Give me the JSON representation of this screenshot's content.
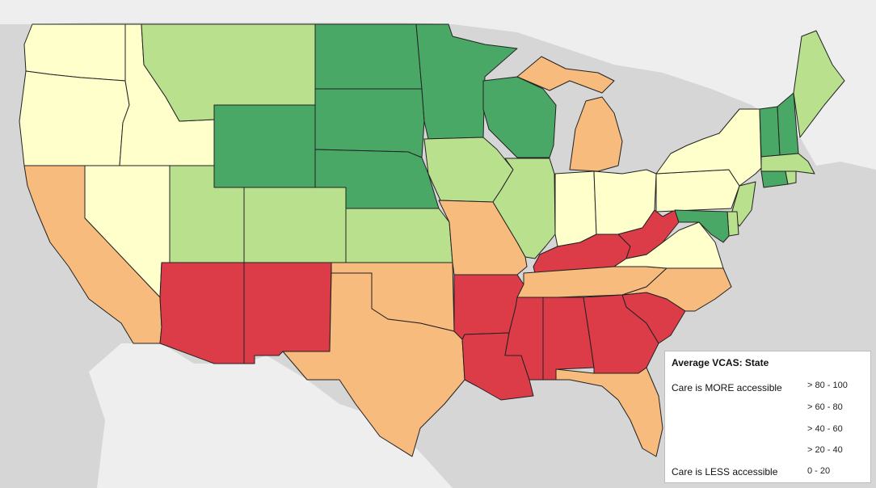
{
  "colors": {
    "water": "#d6d6d6",
    "land": "#eeeeee",
    "bin_80_100": "#4aa867",
    "bin_60_80": "#b9e08d",
    "bin_40_60": "#ffffcc",
    "bin_20_40": "#f8bb7e",
    "bin_0_20": "#dc3c48"
  },
  "legend": {
    "title": "Average VCAS: State",
    "more": "Care is MORE accessible",
    "less": "Care is LESS accessible",
    "bins": [
      {
        "label": "> 80 - 100",
        "color": "#4aa867"
      },
      {
        "label": "> 60 - 80",
        "color": "#b9e08d"
      },
      {
        "label": "> 40 - 60",
        "color": "#ffffcc"
      },
      {
        "label": "> 20 - 40",
        "color": "#f8bb7e"
      },
      {
        "label": "0 - 20",
        "color": "#dc3c48"
      }
    ]
  },
  "states": {
    "WA": "> 40 - 60",
    "OR": "> 40 - 60",
    "ID": "> 40 - 60",
    "NV": "> 40 - 60",
    "CA": "> 20 - 40",
    "MT": "> 60 - 80",
    "WY": "> 80 - 100",
    "UT": "> 60 - 80",
    "CO": "> 60 - 80",
    "AZ": "0 - 20",
    "NM": "0 - 20",
    "ND": "> 80 - 100",
    "SD": "> 80 - 100",
    "NE": "> 80 - 100",
    "KS": "> 60 - 80",
    "OK": "> 20 - 40",
    "TX": "> 20 - 40",
    "MN": "> 80 - 100",
    "IA": "> 60 - 80",
    "MO": "> 20 - 40",
    "AR": "0 - 20",
    "LA": "0 - 20",
    "WI": "> 80 - 100",
    "IL": "> 60 - 80",
    "MI": "> 20 - 40",
    "IN": "> 40 - 60",
    "OH": "> 40 - 60",
    "KY": "0 - 20",
    "TN": "> 20 - 40",
    "MS": "0 - 20",
    "AL": "0 - 20",
    "GA": "0 - 20",
    "FL": "> 20 - 40",
    "SC": "0 - 20",
    "NC": "> 20 - 40",
    "VA": "> 40 - 60",
    "WV": "0 - 20",
    "PA": "> 40 - 60",
    "NY": "> 40 - 60",
    "VT": "> 80 - 100",
    "NH": "> 80 - 100",
    "ME": "> 60 - 80",
    "MA": "> 60 - 80",
    "CT": "> 80 - 100",
    "RI": "> 60 - 80",
    "NJ": "> 60 - 80",
    "DE": "> 60 - 80",
    "MD": "> 80 - 100"
  }
}
